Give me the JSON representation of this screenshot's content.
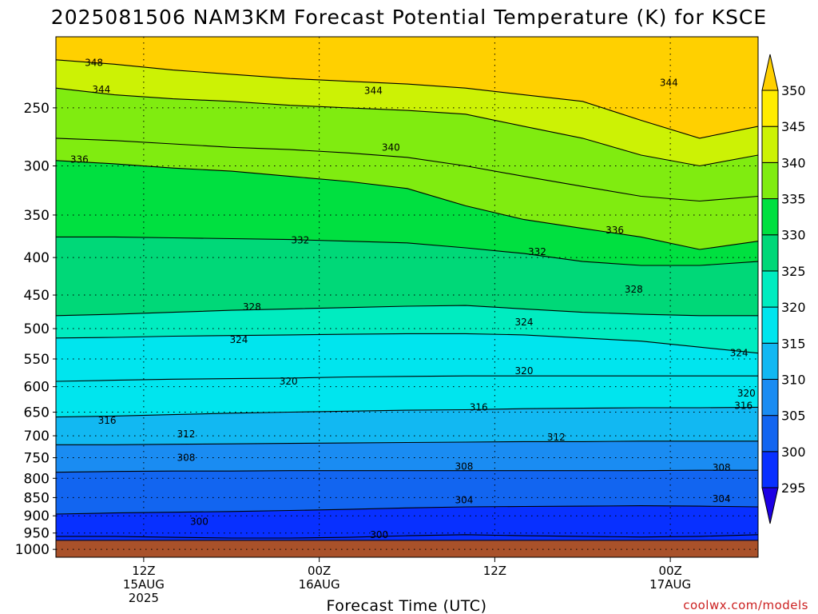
{
  "title": "2025081506 NAM3KM Forecast Potential Temperature (K) for KSCE",
  "credit": "coolwx.com/models",
  "chart_data": {
    "type": "heatmap",
    "title": "2025081506 NAM3KM Forecast Potential Temperature (K) for KSCE",
    "xlabel": "Forecast Time (UTC)",
    "ylabel": "",
    "x_range_hours": [
      -6,
      42
    ],
    "y_range_hpa": [
      1025,
      200
    ],
    "y_scale": "log",
    "grid": true,
    "y_ticks": [
      250,
      300,
      350,
      400,
      450,
      500,
      550,
      600,
      650,
      700,
      750,
      800,
      850,
      900,
      950,
      1000
    ],
    "x_ticks": [
      {
        "hour": 0,
        "lines": [
          "12Z",
          "15AUG",
          "2025"
        ]
      },
      {
        "hour": 12,
        "lines": [
          "00Z",
          "16AUG"
        ]
      },
      {
        "hour": 24,
        "lines": [
          "12Z"
        ]
      },
      {
        "hour": 36,
        "lines": [
          "00Z",
          "17AUG"
        ]
      },
      {
        "hour": 48,
        "lines": [
          "12Z"
        ]
      }
    ],
    "colorbar": {
      "levels": [
        295,
        300,
        305,
        310,
        315,
        320,
        325,
        330,
        335,
        340,
        345,
        350
      ],
      "colors": [
        "#1d00e4",
        "#0830ff",
        "#1265f0",
        "#1a8cf2",
        "#12b8f2",
        "#00e5ee",
        "#00ecc0",
        "#00d878",
        "#00e040",
        "#80ec10",
        "#ccf205",
        "#ffec00",
        "#ffd000"
      ]
    },
    "ground_pressure_hpa": 972,
    "isentropes": [
      {
        "theta": 300,
        "pressure": [
          960,
          960,
          963,
          965,
          965,
          963,
          958,
          955,
          958,
          960,
          962,
          960,
          955
        ]
      },
      {
        "theta": 304,
        "pressure": [
          895,
          892,
          890,
          888,
          885,
          882,
          878,
          875,
          874,
          873,
          872,
          873,
          875
        ]
      },
      {
        "theta": 308,
        "pressure": [
          785,
          783,
          782,
          782,
          781,
          781,
          781,
          781,
          781,
          781,
          781,
          780,
          780
        ]
      },
      {
        "theta": 312,
        "pressure": [
          720,
          720,
          719,
          718,
          717,
          716,
          715,
          714,
          713,
          713,
          712,
          712,
          712
        ]
      },
      {
        "theta": 316,
        "pressure": [
          660,
          658,
          655,
          652,
          650,
          648,
          646,
          645,
          643,
          642,
          641,
          641,
          640
        ]
      },
      {
        "theta": 320,
        "pressure": [
          590,
          588,
          586,
          585,
          584,
          582,
          581,
          580,
          580,
          580,
          580,
          580,
          580
        ]
      },
      {
        "theta": 324,
        "pressure": [
          515,
          514,
          512,
          511,
          510,
          509,
          508,
          508,
          510,
          515,
          520,
          530,
          540
        ]
      },
      {
        "theta": 328,
        "pressure": [
          480,
          478,
          475,
          472,
          470,
          468,
          466,
          465,
          470,
          475,
          478,
          480,
          480
        ]
      },
      {
        "theta": 332,
        "pressure": [
          375,
          375,
          376,
          377,
          378,
          380,
          382,
          388,
          395,
          405,
          410,
          410,
          405
        ]
      },
      {
        "theta": 336,
        "pressure": [
          295,
          298,
          302,
          305,
          310,
          315,
          322,
          340,
          355,
          365,
          375,
          390,
          380
        ]
      },
      {
        "theta": 340,
        "pressure": [
          275,
          277,
          280,
          283,
          285,
          288,
          292,
          300,
          310,
          320,
          330,
          335,
          330
        ]
      },
      {
        "theta": 344,
        "pressure": [
          235,
          240,
          243,
          245,
          248,
          250,
          252,
          255,
          265,
          275,
          290,
          300,
          290
        ]
      },
      {
        "theta": 348,
        "pressure": [
          215,
          218,
          222,
          225,
          228,
          230,
          232,
          235,
          240,
          245,
          260,
          275,
          265
        ]
      }
    ],
    "contour_labels": [
      {
        "text": "348",
        "hour": -3.4,
        "pressure": 217
      },
      {
        "text": "344",
        "hour": -2.9,
        "pressure": 236
      },
      {
        "text": "344",
        "hour": 15.7,
        "pressure": 237
      },
      {
        "text": "344",
        "hour": 35.9,
        "pressure": 231
      },
      {
        "text": "340",
        "hour": 16.9,
        "pressure": 283
      },
      {
        "text": "336",
        "hour": -4.4,
        "pressure": 294
      },
      {
        "text": "336",
        "hour": 32.2,
        "pressure": 367
      },
      {
        "text": "332",
        "hour": 10.7,
        "pressure": 379
      },
      {
        "text": "332",
        "hour": 26.9,
        "pressure": 393
      },
      {
        "text": "328",
        "hour": 7.4,
        "pressure": 467
      },
      {
        "text": "328",
        "hour": 33.5,
        "pressure": 442
      },
      {
        "text": "324",
        "hour": 6.5,
        "pressure": 518
      },
      {
        "text": "324",
        "hour": 26.0,
        "pressure": 490
      },
      {
        "text": "324",
        "hour": 40.7,
        "pressure": 540
      },
      {
        "text": "320",
        "hour": 9.9,
        "pressure": 590
      },
      {
        "text": "320",
        "hour": 26.0,
        "pressure": 571
      },
      {
        "text": "320",
        "hour": 41.2,
        "pressure": 613
      },
      {
        "text": "316",
        "hour": -2.5,
        "pressure": 667
      },
      {
        "text": "316",
        "hour": 22.9,
        "pressure": 640
      },
      {
        "text": "316",
        "hour": 41.0,
        "pressure": 637
      },
      {
        "text": "312",
        "hour": 2.9,
        "pressure": 696
      },
      {
        "text": "312",
        "hour": 28.2,
        "pressure": 703
      },
      {
        "text": "312",
        "hour": 43.1,
        "pressure": 722
      },
      {
        "text": "308",
        "hour": 2.9,
        "pressure": 750
      },
      {
        "text": "308",
        "hour": 21.9,
        "pressure": 771
      },
      {
        "text": "308",
        "hour": 39.5,
        "pressure": 774
      },
      {
        "text": "304",
        "hour": 21.9,
        "pressure": 857
      },
      {
        "text": "304",
        "hour": 39.5,
        "pressure": 853
      },
      {
        "text": "300",
        "hour": 3.8,
        "pressure": 917
      },
      {
        "text": "300",
        "hour": 16.1,
        "pressure": 955
      },
      {
        "text": "300",
        "hour": 44.6,
        "pressure": 933
      }
    ]
  }
}
